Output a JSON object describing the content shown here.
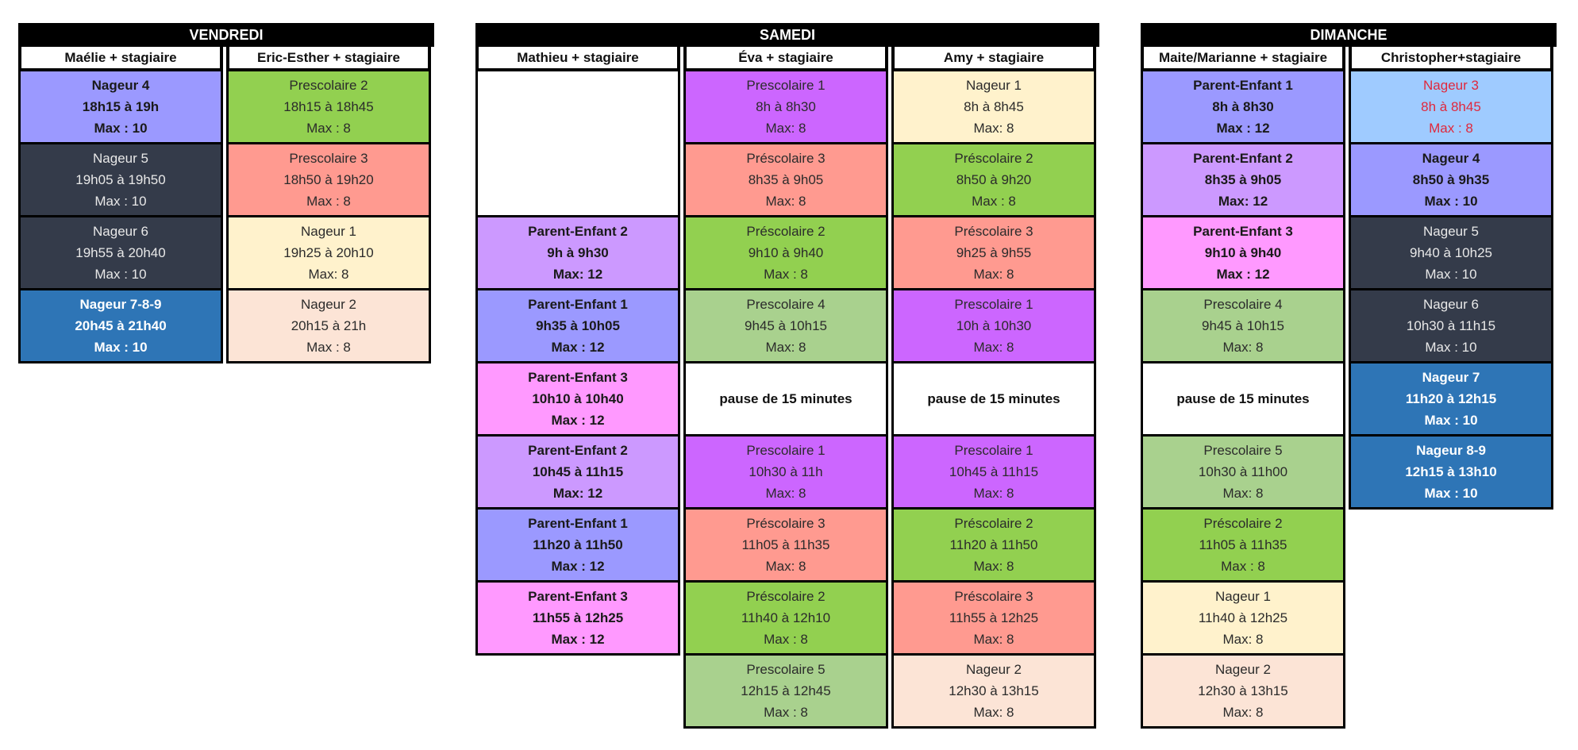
{
  "days": [
    {
      "title": "VENDREDI",
      "columns": [
        {
          "header": "Maélie + stagiaire",
          "cells": [
            {
              "lines": [
                "Nageur 4",
                "18h15 à 19h",
                "Max : 10"
              ],
              "bg": "#9b99ff",
              "bold": true,
              "text": "#1a1a1a"
            },
            {
              "lines": [
                "Nageur 5",
                "19h05 à 19h50",
                "Max : 10"
              ],
              "bg": "#343b4a",
              "text": "#e8e8e8"
            },
            {
              "lines": [
                "Nageur 6",
                "19h55 à 20h40",
                "Max : 10"
              ],
              "bg": "#343b4a",
              "text": "#e8e8e8"
            },
            {
              "lines": [
                "Nageur 7-8-9",
                "20h45 à 21h40",
                "Max : 10"
              ],
              "bg": "#2e75b6",
              "bold": true,
              "text": "#ffffff"
            }
          ]
        },
        {
          "header": "Eric-Esther + stagiaire",
          "cells": [
            {
              "lines": [
                "Prescolaire 2",
                "18h15 à 18h45",
                "Max : 8"
              ],
              "bg": "#92d050",
              "text": "#2b2b2b"
            },
            {
              "lines": [
                "Prescolaire 3",
                "18h50 à 19h20",
                "Max : 8"
              ],
              "bg": "#ff9a90",
              "text": "#2b2b2b"
            },
            {
              "lines": [
                "Nageur 1",
                "19h25 à 20h10",
                "Max: 8"
              ],
              "bg": "#fff2cc",
              "text": "#2b2b2b"
            },
            {
              "lines": [
                "Nageur 2",
                "20h15 à 21h",
                "Max : 8"
              ],
              "bg": "#fce4d6",
              "text": "#2b2b2b"
            }
          ]
        }
      ]
    },
    {
      "title": "SAMEDI",
      "columns": [
        {
          "header": "Mathieu + stagiaire",
          "cells": [
            {
              "lines": [],
              "bg": "#ffffff",
              "double": true
            },
            {
              "lines": [
                "Parent-Enfant 2",
                "9h à 9h30",
                "Max: 12"
              ],
              "bg": "#cc99ff",
              "bold": true,
              "text": "#1a1a1a"
            },
            {
              "lines": [
                "Parent-Enfant 1",
                "9h35 à 10h05",
                "Max : 12"
              ],
              "bg": "#9b99ff",
              "bold": true,
              "text": "#1a1a1a"
            },
            {
              "lines": [
                "Parent-Enfant 3",
                "10h10 à 10h40",
                "Max : 12"
              ],
              "bg": "#ff99ff",
              "bold": true,
              "text": "#1a1a1a"
            },
            {
              "lines": [
                "Parent-Enfant 2",
                "10h45 à 11h15",
                "Max: 12"
              ],
              "bg": "#cc99ff",
              "bold": true,
              "text": "#1a1a1a"
            },
            {
              "lines": [
                "Parent-Enfant 1",
                "11h20 à 11h50",
                "Max : 12"
              ],
              "bg": "#9b99ff",
              "bold": true,
              "text": "#1a1a1a"
            },
            {
              "lines": [
                "Parent-Enfant 3",
                "11h55 à  12h25",
                "Max : 12"
              ],
              "bg": "#ff99ff",
              "bold": true,
              "text": "#1a1a1a"
            }
          ]
        },
        {
          "header": "Éva + stagiaire",
          "cells": [
            {
              "lines": [
                "Prescolaire 1",
                "8h à 8h30",
                "Max: 8"
              ],
              "bg": "#cc66ff",
              "text": "#2b2b2b"
            },
            {
              "lines": [
                "Préscolaire 3",
                "8h35 à 9h05",
                "Max: 8"
              ],
              "bg": "#ff9a90",
              "text": "#2b2b2b"
            },
            {
              "lines": [
                "Préscolaire 2",
                "9h10 à 9h40",
                "Max : 8"
              ],
              "bg": "#92d050",
              "text": "#2b2b2b"
            },
            {
              "lines": [
                "Prescolaire 4",
                "9h45 à 10h15",
                "Max: 8"
              ],
              "bg": "#a9d18e",
              "text": "#2b2b2b"
            },
            {
              "lines": [
                "pause de 15 minutes"
              ],
              "bg": "#ffffff",
              "single": true
            },
            {
              "lines": [
                "Prescolaire 1",
                "10h30 à 11h",
                "Max: 8"
              ],
              "bg": "#cc66ff",
              "text": "#2b2b2b"
            },
            {
              "lines": [
                "Préscolaire 3",
                "11h05 à 11h35",
                "Max: 8"
              ],
              "bg": "#ff9a90",
              "text": "#2b2b2b"
            },
            {
              "lines": [
                "Préscolaire 2",
                "11h40 à 12h10",
                "Max : 8"
              ],
              "bg": "#92d050",
              "text": "#2b2b2b"
            },
            {
              "lines": [
                "Prescolaire 5",
                "12h15 à 12h45",
                "Max : 8"
              ],
              "bg": "#a9d18e",
              "text": "#2b2b2b"
            }
          ]
        },
        {
          "header": "Amy + stagiaire",
          "cells": [
            {
              "lines": [
                "Nageur 1",
                "8h à 8h45",
                "Max: 8"
              ],
              "bg": "#fff2cc",
              "text": "#2b2b2b"
            },
            {
              "lines": [
                "Préscolaire 2",
                "8h50 à 9h20",
                "Max : 8"
              ],
              "bg": "#92d050",
              "text": "#2b2b2b"
            },
            {
              "lines": [
                "Préscolaire 3",
                "9h25 à 9h55",
                "Max: 8"
              ],
              "bg": "#ff9a90",
              "text": "#2b2b2b"
            },
            {
              "lines": [
                "Prescolaire 1",
                "10h à 10h30",
                "Max: 8"
              ],
              "bg": "#cc66ff",
              "text": "#2b2b2b"
            },
            {
              "lines": [
                "pause de 15 minutes"
              ],
              "bg": "#ffffff",
              "single": true
            },
            {
              "lines": [
                "Prescolaire 1",
                "10h45 à 11h15",
                "Max: 8"
              ],
              "bg": "#cc66ff",
              "text": "#2b2b2b"
            },
            {
              "lines": [
                "Préscolaire 2",
                "11h20 à 11h50",
                "Max: 8"
              ],
              "bg": "#92d050",
              "text": "#2b2b2b"
            },
            {
              "lines": [
                "Préscolaire 3",
                "11h55 à 12h25",
                "Max: 8"
              ],
              "bg": "#ff9a90",
              "text": "#2b2b2b"
            },
            {
              "lines": [
                "Nageur 2",
                "12h30 à 13h15",
                "Max: 8"
              ],
              "bg": "#fce4d6",
              "text": "#2b2b2b"
            }
          ]
        }
      ]
    },
    {
      "title": "DIMANCHE",
      "columns": [
        {
          "header": "Maite/Marianne + stagiaire",
          "cells": [
            {
              "lines": [
                "Parent-Enfant 1",
                "8h à 8h30",
                "Max : 12"
              ],
              "bg": "#9b99ff",
              "bold": true,
              "text": "#1a1a1a"
            },
            {
              "lines": [
                "Parent-Enfant 2",
                "8h35 à 9h05",
                "Max: 12"
              ],
              "bg": "#cc99ff",
              "bold": true,
              "text": "#1a1a1a"
            },
            {
              "lines": [
                "Parent-Enfant 3",
                "9h10 à 9h40",
                "Max : 12"
              ],
              "bg": "#ff99ff",
              "bold": true,
              "text": "#1a1a1a"
            },
            {
              "lines": [
                "Prescolaire 4",
                "9h45 à 10h15",
                "Max: 8"
              ],
              "bg": "#a9d18e",
              "text": "#2b2b2b"
            },
            {
              "lines": [
                "pause de 15 minutes"
              ],
              "bg": "#ffffff",
              "single": true
            },
            {
              "lines": [
                "Prescolaire 5",
                "10h30 à 11h00",
                "Max: 8"
              ],
              "bg": "#a9d18e",
              "text": "#2b2b2b"
            },
            {
              "lines": [
                "Préscolaire 2",
                "11h05 à 11h35",
                "Max : 8"
              ],
              "bg": "#92d050",
              "text": "#2b2b2b"
            },
            {
              "lines": [
                "Nageur 1",
                "11h40 à 12h25",
                "Max: 8"
              ],
              "bg": "#fff2cc",
              "text": "#2b2b2b"
            },
            {
              "lines": [
                "Nageur 2",
                "12h30 à 13h15",
                "Max: 8"
              ],
              "bg": "#fce4d6",
              "text": "#2b2b2b"
            }
          ]
        },
        {
          "header": "Christopher+stagiaire",
          "cells": [
            {
              "lines": [
                "Nageur 3",
                "8h à 8h45",
                "Max : 8"
              ],
              "bg": "#9fcbff",
              "text": "#e0283c"
            },
            {
              "lines": [
                "Nageur 4",
                "8h50 à 9h35",
                "Max : 10"
              ],
              "bg": "#9b99ff",
              "bold": true,
              "text": "#1a1a1a"
            },
            {
              "lines": [
                "Nageur 5",
                "9h40 à  10h25",
                "Max : 10"
              ],
              "bg": "#343b4a",
              "text": "#e8e8e8"
            },
            {
              "lines": [
                "Nageur 6",
                "10h30 à 11h15",
                "Max : 10"
              ],
              "bg": "#343b4a",
              "text": "#e8e8e8"
            },
            {
              "lines": [
                "Nageur 7",
                "11h20 à 12h15",
                "Max : 10"
              ],
              "bg": "#2e75b6",
              "bold": true,
              "text": "#ffffff"
            },
            {
              "lines": [
                "Nageur 8-9",
                "12h15 à 13h10",
                "Max : 10"
              ],
              "bg": "#2e75b6",
              "bold": true,
              "text": "#ffffff"
            }
          ]
        }
      ]
    }
  ]
}
